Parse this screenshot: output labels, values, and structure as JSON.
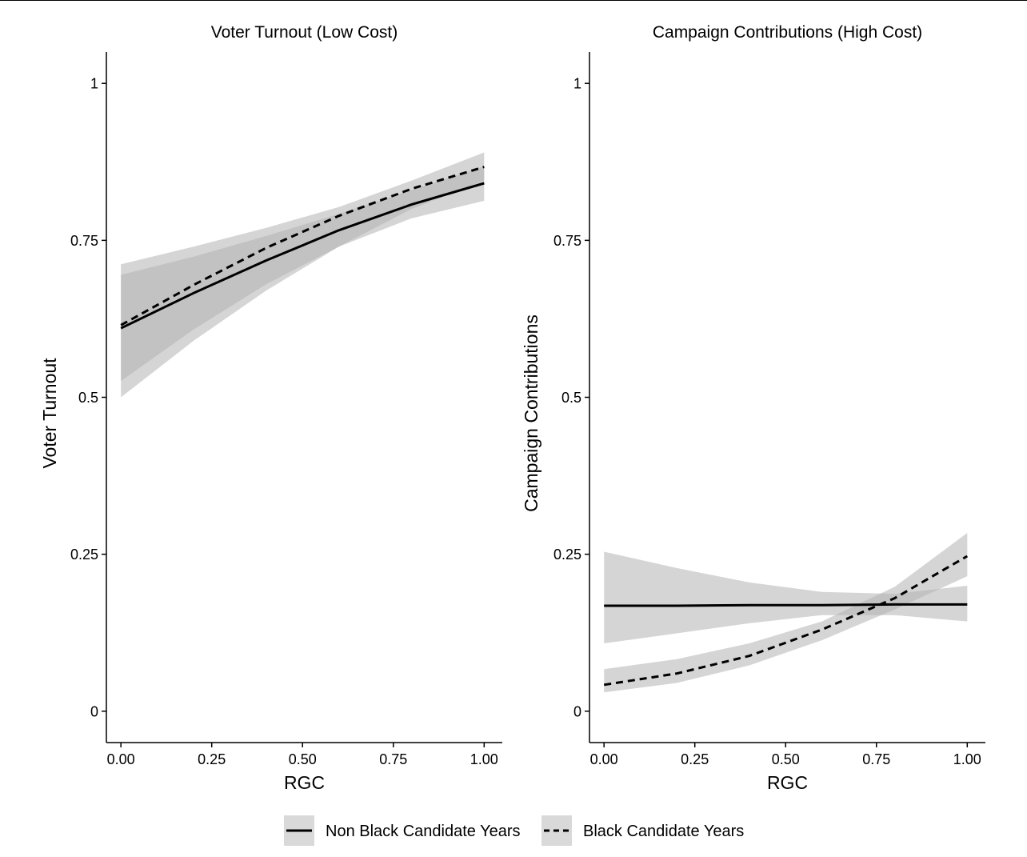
{
  "chart_data": [
    {
      "type": "line",
      "title": "Voter Turnout (Low Cost)",
      "xlabel": "RGC",
      "ylabel": "Voter Turnout",
      "xlim": [
        -0.04,
        1.05
      ],
      "ylim": [
        -0.05,
        1.05
      ],
      "xticks": [
        0,
        0.25,
        0.5,
        0.75,
        1
      ],
      "xtick_labels": [
        "0.00",
        "0.25",
        "0.50",
        "0.75",
        "1.00"
      ],
      "yticks": [
        0,
        0.25,
        0.5,
        0.75,
        1
      ],
      "ytick_labels": [
        "0",
        "0.25",
        "0.5",
        "0.75",
        "1"
      ],
      "grid": false,
      "x": [
        0,
        0.2,
        0.4,
        0.6,
        0.8,
        1.0
      ],
      "series": [
        {
          "name": "Non Black Candidate Years",
          "linestyle": "solid",
          "values": [
            0.61,
            0.666,
            0.718,
            0.766,
            0.807,
            0.841
          ],
          "lower": [
            0.526,
            0.608,
            0.68,
            0.74,
            0.785,
            0.813
          ],
          "upper": [
            0.695,
            0.724,
            0.757,
            0.792,
            0.83,
            0.868
          ]
        },
        {
          "name": "Black Candidate Years",
          "linestyle": "dashed",
          "values": [
            0.615,
            0.679,
            0.738,
            0.789,
            0.832,
            0.867
          ],
          "lower": [
            0.5,
            0.59,
            0.67,
            0.74,
            0.8,
            0.845
          ],
          "upper": [
            0.712,
            0.74,
            0.77,
            0.803,
            0.845,
            0.89
          ]
        }
      ]
    },
    {
      "type": "line",
      "title": "Campaign Contributions (High Cost)",
      "xlabel": "RGC",
      "ylabel": "Campaign Contributions",
      "xlim": [
        -0.04,
        1.05
      ],
      "ylim": [
        -0.05,
        1.05
      ],
      "xticks": [
        0,
        0.25,
        0.5,
        0.75,
        1
      ],
      "xtick_labels": [
        "0.00",
        "0.25",
        "0.50",
        "0.75",
        "1.00"
      ],
      "yticks": [
        0,
        0.25,
        0.5,
        0.75,
        1
      ],
      "ytick_labels": [
        "0",
        "0.25",
        "0.5",
        "0.75",
        "1"
      ],
      "grid": false,
      "x": [
        0,
        0.2,
        0.4,
        0.6,
        0.8,
        1.0
      ],
      "series": [
        {
          "name": "Non Black Candidate Years",
          "linestyle": "solid",
          "values": [
            0.168,
            0.168,
            0.169,
            0.169,
            0.17,
            0.17
          ],
          "lower": [
            0.108,
            0.124,
            0.14,
            0.153,
            0.153,
            0.143
          ],
          "upper": [
            0.254,
            0.228,
            0.205,
            0.19,
            0.187,
            0.2
          ]
        },
        {
          "name": "Black Candidate Years",
          "linestyle": "dashed",
          "values": [
            0.042,
            0.06,
            0.088,
            0.13,
            0.18,
            0.247
          ],
          "lower": [
            0.03,
            0.045,
            0.073,
            0.113,
            0.162,
            0.215
          ],
          "upper": [
            0.067,
            0.083,
            0.108,
            0.143,
            0.198,
            0.284
          ]
        }
      ]
    }
  ],
  "legend": {
    "placement": "bottom",
    "items": [
      {
        "label": "Non Black Candidate Years",
        "linestyle": "solid"
      },
      {
        "label": "Black Candidate Years",
        "linestyle": "dashed"
      }
    ]
  },
  "colors": {
    "ribbon": "#b3b3b3",
    "line": "#000000",
    "legend_key_bg": "#d9d9d9"
  }
}
